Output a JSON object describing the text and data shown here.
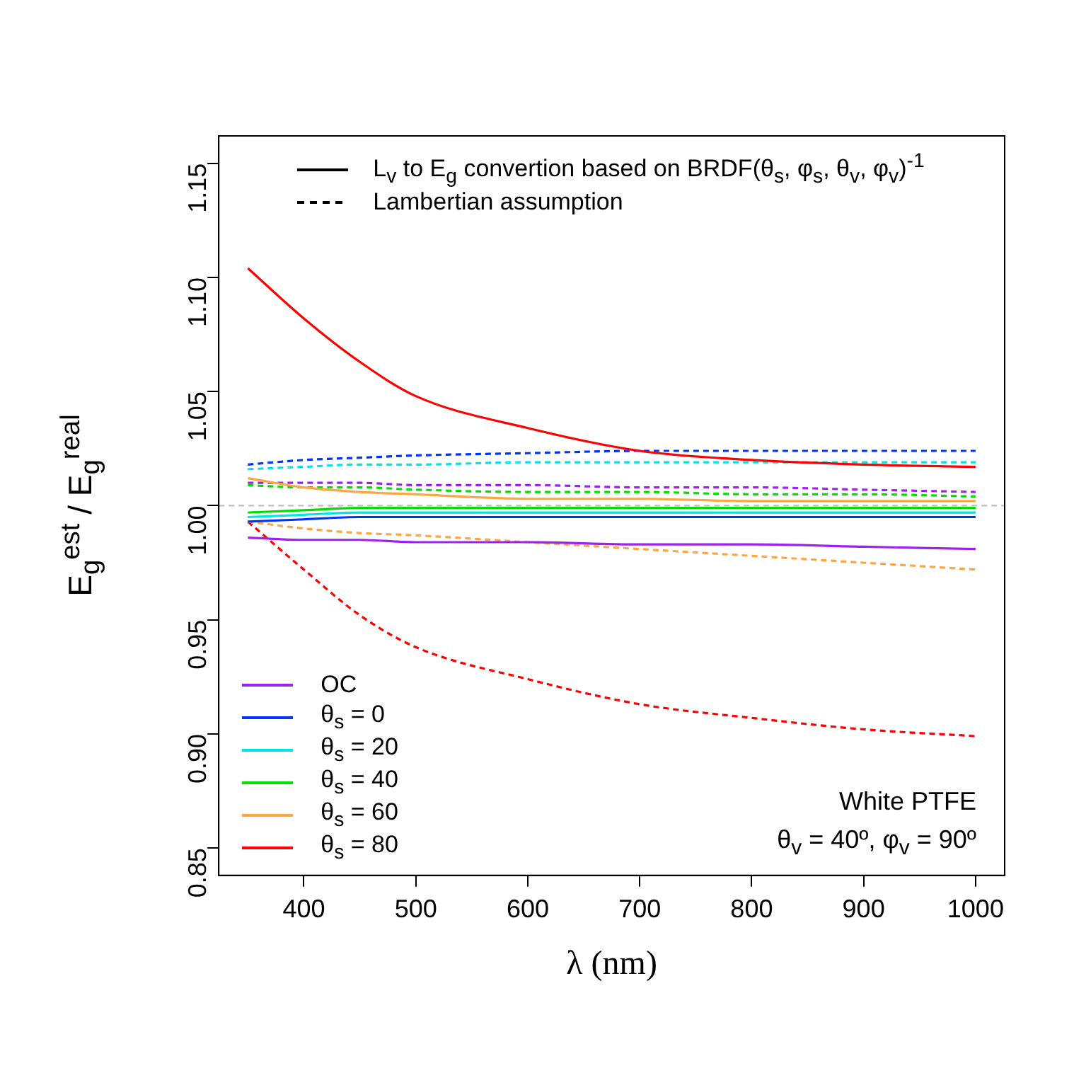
{
  "chart_data": {
    "type": "line",
    "xlabel": "λ (nm)",
    "ylabel": "E$_{g}$$^{est}$ / E$_{g}$$^{real}$",
    "x": [
      350,
      400,
      450,
      500,
      600,
      700,
      800,
      900,
      1000
    ],
    "xlim": [
      324,
      1026
    ],
    "xticks": [
      400,
      500,
      600,
      700,
      800,
      900,
      1000
    ],
    "ylim": [
      0.838,
      1.162
    ],
    "yticks": [
      0.85,
      {
        "value": 0.9,
        "label": "0.90"
      },
      0.95,
      {
        "value": 1,
        "label": "1.00"
      },
      1.05,
      {
        "value": 1.1,
        "label": "1.10"
      },
      1.15
    ],
    "grid": false,
    "legend": "bottom left",
    "marker": "none",
    "ref_lines": [
      {
        "axis": "y",
        "value": 1,
        "color": "#bebebe",
        "line_style": "dashed"
      }
    ],
    "annotations": [
      "L$_{v}$ to E$_{g}$ convertion based on BRDF(θ$_{s}$, φ$_{s}$, θ$_{v}$, φ$_{v}$)$^{-1}$",
      "Lambertian assumption",
      "White PTFE",
      "θ$_{v}$ = 40º, φ$_{v}$ = 90º"
    ],
    "series": [
      {
        "name": "OC",
        "color": "#a020f0",
        "line_style": "solid",
        "values": [
          0.986,
          0.985,
          0.985,
          0.984,
          0.984,
          0.983,
          0.983,
          0.982,
          0.981
        ]
      },
      {
        "name": "θ$_{s}$ = 0",
        "color": "#0033ff",
        "line_style": "solid",
        "values": [
          0.993,
          0.994,
          0.995,
          0.995,
          0.995,
          0.995,
          0.995,
          0.995,
          0.995
        ]
      },
      {
        "name": "θ$_{s}$ = 20",
        "color": "#00e5e5",
        "line_style": "solid",
        "values": [
          0.995,
          0.996,
          0.997,
          0.997,
          0.997,
          0.997,
          0.997,
          0.997,
          0.997
        ]
      },
      {
        "name": "θ$_{s}$ = 40",
        "color": "#00e000",
        "line_style": "solid",
        "values": [
          0.997,
          0.998,
          0.999,
          0.999,
          0.999,
          0.999,
          0.999,
          0.999,
          0.999
        ]
      },
      {
        "name": "θ$_{s}$ = 60",
        "color": "#ffa640",
        "line_style": "solid",
        "values": [
          1.012,
          1.008,
          1.006,
          1.005,
          1.003,
          1.003,
          1.002,
          1.002,
          1.002
        ]
      },
      {
        "name": "θ$_{s}$ = 80",
        "color": "#ff0000",
        "line_style": "solid",
        "values": [
          1.104,
          1.082,
          1.063,
          1.048,
          1.034,
          1.024,
          1.02,
          1.018,
          1.017
        ]
      },
      {
        "color": "#a020f0",
        "line_style": "dashed",
        "values": [
          1.01,
          1.01,
          1.01,
          1.009,
          1.009,
          1.008,
          1.008,
          1.007,
          1.006
        ]
      },
      {
        "color": "#0033ff",
        "line_style": "dashed",
        "values": [
          1.018,
          1.02,
          1.021,
          1.022,
          1.023,
          1.024,
          1.024,
          1.024,
          1.024
        ]
      },
      {
        "color": "#00e5e5",
        "line_style": "dashed",
        "values": [
          1.016,
          1.017,
          1.018,
          1.018,
          1.019,
          1.019,
          1.019,
          1.019,
          1.019
        ]
      },
      {
        "color": "#00e000",
        "line_style": "dashed",
        "values": [
          1.009,
          1.008,
          1.008,
          1.007,
          1.006,
          1.006,
          1.005,
          1.005,
          1.004
        ]
      },
      {
        "color": "#ffa640",
        "line_style": "dashed",
        "values": [
          0.993,
          0.99,
          0.988,
          0.987,
          0.984,
          0.981,
          0.978,
          0.975,
          0.972
        ]
      },
      {
        "color": "#ff0000",
        "line_style": "dashed",
        "values": [
          0.993,
          0.972,
          0.952,
          0.938,
          0.924,
          0.913,
          0.907,
          0.902,
          0.899
        ]
      }
    ]
  }
}
